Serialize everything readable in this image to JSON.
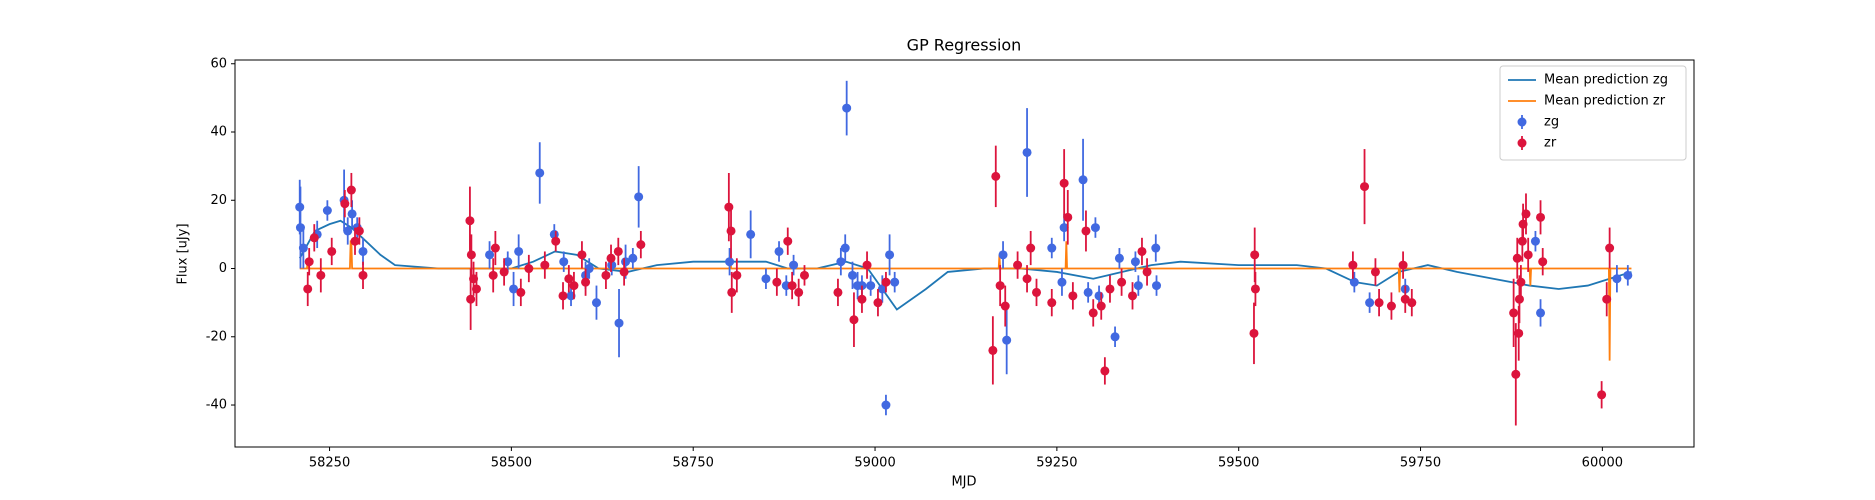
{
  "chart_data": {
    "type": "errorbar",
    "title": "GP Regression",
    "xlabel": "MJD",
    "ylabel": "Flux [uJy]",
    "xlim": [
      58120,
      60126
    ],
    "ylim": [
      -52.3,
      61.1
    ],
    "xticks": [
      58250,
      58500,
      58750,
      59000,
      59250,
      59500,
      59750,
      60000
    ],
    "yticks": [
      -40,
      -20,
      0,
      20,
      40,
      60
    ],
    "legend": "upper right",
    "series": [
      {
        "name": "Mean prediction zg",
        "style": "line",
        "color": "#1f77b4",
        "x": [
          58209,
          58230,
          58250,
          58265,
          58280,
          58300,
          58320,
          58340,
          58400,
          58450,
          58500,
          58530,
          58560,
          58590,
          58620,
          58660,
          58700,
          58750,
          58800,
          58850,
          58880,
          58920,
          58960,
          58990,
          59030,
          59070,
          59100,
          59150,
          59200,
          59250,
          59300,
          59340,
          59380,
          59420,
          59500,
          59580,
          59620,
          59660,
          59690,
          59720,
          59760,
          59800,
          59850,
          59900,
          59940,
          59980,
          60010,
          60040
        ],
        "values": [
          3,
          11,
          13,
          14,
          12,
          8,
          4,
          1,
          0,
          0,
          0,
          2,
          5,
          4,
          0,
          -1,
          1,
          2,
          2,
          2,
          0,
          0,
          2,
          0,
          -12,
          -6,
          -1,
          0,
          0,
          -1,
          -3,
          -1,
          1,
          2,
          1,
          1,
          0,
          -4,
          -5,
          -1,
          1,
          -1,
          -3,
          -5,
          -6,
          -5,
          -3,
          -1
        ]
      },
      {
        "name": "Mean prediction zr",
        "style": "line",
        "color": "#ff7f0e",
        "x": [
          58209,
          58219,
          58220,
          58221,
          58278,
          58279,
          58280,
          58281,
          58800,
          58801,
          58802,
          59170,
          59171,
          59172,
          59262,
          59263,
          59264,
          59720,
          59721,
          59722,
          59900,
          59901,
          59902,
          60009,
          60010,
          60011,
          60040
        ],
        "values": [
          0,
          0,
          3,
          0,
          0,
          8,
          8,
          0,
          0,
          4,
          0,
          0,
          4,
          0,
          0,
          8,
          0,
          0,
          -7,
          0,
          0,
          -5,
          0,
          0,
          -27,
          0,
          0
        ]
      },
      {
        "name": "zg",
        "style": "errorbar",
        "color": "#4169e1",
        "x": [
          58209,
          58210,
          58214,
          58233,
          58247,
          58270,
          58275,
          58281,
          58288,
          58296,
          58470,
          58495,
          58503,
          58510,
          58539,
          58559,
          58572,
          58582,
          58602,
          58607,
          58617,
          58638,
          58648,
          58657,
          58667,
          58675,
          58800,
          58829,
          58850,
          58868,
          58878,
          58888,
          58953,
          58959,
          58961,
          58969,
          58976,
          58982,
          58994,
          59010,
          59015,
          59020,
          59027,
          59176,
          59181,
          59209,
          59243,
          59257,
          59260,
          59286,
          59293,
          59303,
          59308,
          59330,
          59336,
          59358,
          59362,
          59386,
          59387,
          59659,
          59680,
          59729,
          59908,
          59915,
          60020,
          60035
        ],
        "values": [
          18,
          12,
          6,
          10,
          17,
          20,
          11,
          16,
          12,
          5,
          4,
          2,
          -6,
          5,
          28,
          10,
          2,
          -8,
          -2,
          0,
          -10,
          1,
          -16,
          2,
          3,
          21,
          2,
          10,
          -3,
          5,
          -5,
          1,
          2,
          6,
          47,
          -2,
          -5,
          -5,
          -5,
          -6,
          -40,
          4,
          -4,
          4,
          -21,
          34,
          6,
          -4,
          12,
          26,
          -7,
          12,
          -8,
          -20,
          3,
          2,
          -5,
          6,
          -5,
          -4,
          -10,
          -6,
          8,
          -13,
          -3,
          -2
        ],
        "errors": [
          8,
          12,
          6,
          4,
          3,
          9,
          4,
          4,
          3,
          4,
          4,
          3,
          5,
          5,
          9,
          3,
          3,
          3,
          4,
          3,
          5,
          3,
          10,
          5,
          3,
          9,
          4,
          7,
          3,
          3,
          3,
          3,
          4,
          4,
          8,
          4,
          4,
          3,
          3,
          4,
          3,
          6,
          3,
          4,
          10,
          13,
          3,
          4,
          4,
          12,
          3,
          3,
          3,
          3,
          3,
          3,
          3,
          4,
          3,
          3,
          3,
          3,
          3,
          4,
          4,
          3
        ]
      },
      {
        "name": "zr",
        "style": "errorbar",
        "color": "#dc143c",
        "x": [
          58220,
          58222,
          58229,
          58238,
          58253,
          58271,
          58280,
          58285,
          58291,
          58296,
          58443,
          58444,
          58445,
          58448,
          58452,
          58475,
          58478,
          58490,
          58513,
          58524,
          58546,
          58561,
          58571,
          58579,
          58586,
          58597,
          58602,
          58630,
          58637,
          58647,
          58655,
          58678,
          58799,
          58802,
          58803,
          58810,
          58865,
          58880,
          58886,
          58895,
          58903,
          58949,
          58971,
          58982,
          58989,
          59004,
          59015,
          59162,
          59166,
          59172,
          59179,
          59196,
          59209,
          59214,
          59222,
          59243,
          59260,
          59265,
          59272,
          59290,
          59300,
          59311,
          59316,
          59323,
          59339,
          59354,
          59367,
          59374,
          59521,
          59522,
          59523,
          59657,
          59673,
          59688,
          59693,
          59710,
          59726,
          59729,
          59738,
          59878,
          59881,
          59883,
          59885,
          59886,
          59888,
          59890,
          59891,
          59895,
          59898,
          59915,
          59918,
          59999,
          60006,
          60010
        ],
        "values": [
          -6,
          2,
          9,
          -2,
          5,
          19,
          23,
          8,
          11,
          -2,
          14,
          -9,
          4,
          -3,
          -6,
          -2,
          6,
          -1,
          -7,
          0,
          1,
          8,
          -8,
          -3,
          -5,
          4,
          -4,
          -2,
          3,
          5,
          -1,
          7,
          18,
          11,
          -7,
          -2,
          -4,
          8,
          -5,
          -7,
          -2,
          -7,
          -15,
          -9,
          1,
          -10,
          -4,
          -24,
          27,
          -5,
          -11,
          1,
          -3,
          6,
          -7,
          -10,
          25,
          15,
          -8,
          11,
          -13,
          -11,
          -30,
          -6,
          -4,
          -8,
          5,
          -1,
          -19,
          4,
          -6,
          1,
          24,
          -1,
          -10,
          -11,
          1,
          -9,
          -10,
          -13,
          -31,
          3,
          -19,
          -9,
          -4,
          8,
          13,
          16,
          4,
          15,
          2,
          -37,
          -9,
          6
        ],
        "errors": [
          5,
          4,
          4,
          5,
          4,
          4,
          5,
          4,
          4,
          4,
          10,
          9,
          6,
          5,
          5,
          5,
          5,
          4,
          4,
          4,
          4,
          3,
          4,
          4,
          4,
          4,
          4,
          4,
          4,
          4,
          4,
          4,
          10,
          8,
          6,
          5,
          4,
          4,
          4,
          4,
          3,
          4,
          8,
          4,
          4,
          4,
          3,
          10,
          9,
          6,
          6,
          4,
          4,
          5,
          4,
          4,
          10,
          8,
          4,
          6,
          4,
          4,
          4,
          4,
          4,
          4,
          4,
          4,
          9,
          8,
          5,
          4,
          11,
          4,
          4,
          4,
          4,
          4,
          4,
          10,
          15,
          6,
          8,
          7,
          5,
          6,
          6,
          6,
          5,
          5,
          4,
          4,
          5,
          6
        ]
      }
    ]
  }
}
